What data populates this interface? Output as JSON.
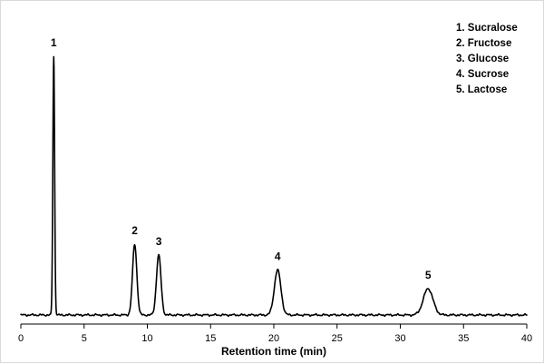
{
  "chart_data": {
    "type": "line",
    "title": "",
    "xlabel": "Retention time (min)",
    "ylabel": "",
    "xlim": [
      0,
      40
    ],
    "ylim": [
      0,
      100
    ],
    "xticks": [
      0,
      5,
      10,
      15,
      20,
      25,
      30,
      35,
      40
    ],
    "grid": false,
    "legend_position": "top-right",
    "legend": [
      "1. Sucralose",
      "2. Fructose",
      "3. Glucose",
      "4. Sucrose",
      "5. Lactose"
    ],
    "peaks": [
      {
        "label": "1",
        "name": "Sucralose",
        "x": 2.6,
        "height": 100,
        "width": 0.07
      },
      {
        "label": "2",
        "name": "Fructose",
        "x": 9.0,
        "height": 27.3,
        "width": 0.17
      },
      {
        "label": "3",
        "name": "Glucose",
        "x": 10.9,
        "height": 23.2,
        "width": 0.18
      },
      {
        "label": "4",
        "name": "Sucrose",
        "x": 20.3,
        "height": 17.4,
        "width": 0.26
      },
      {
        "label": "5",
        "name": "Lactose",
        "x": 32.2,
        "height": 10.2,
        "width": 0.38
      }
    ]
  }
}
